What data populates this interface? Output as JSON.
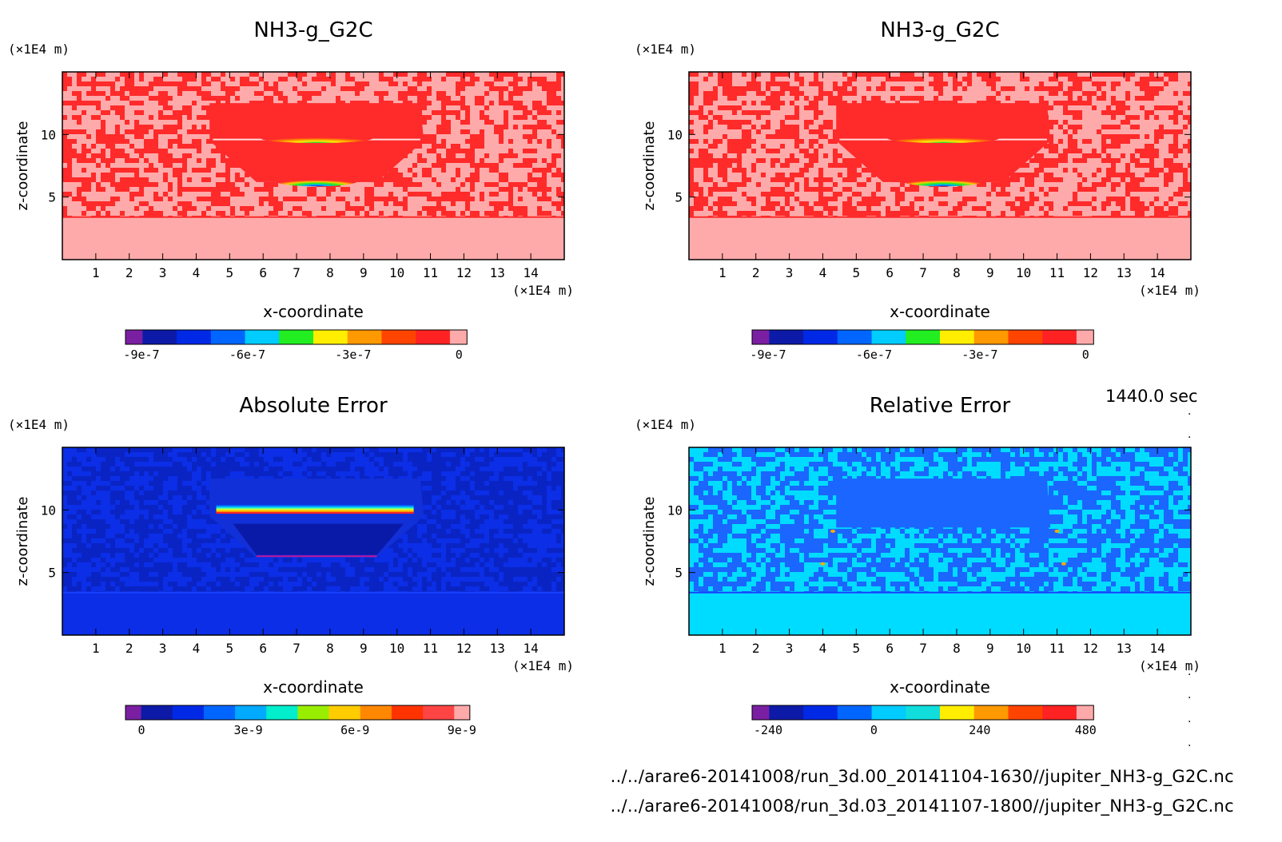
{
  "chart_data": [
    {
      "type": "heatmap",
      "title": "NH3-g_G2C",
      "xlabel": "x-coordinate",
      "ylabel": "z-coordinate",
      "x_unit": "(×1E4 m)",
      "z_unit": "(×1E4 m)",
      "xlim": [
        0,
        15
      ],
      "zlim": [
        0,
        15
      ],
      "x_ticks": [
        1,
        2,
        3,
        4,
        5,
        6,
        7,
        8,
        9,
        10,
        11,
        12,
        13,
        14
      ],
      "z_ticks": [
        5,
        10
      ],
      "colorbar_ticks": [
        "-9e-7",
        "-6e-7",
        "-3e-7",
        "0"
      ],
      "colorbar_levels": [
        "#7b1fa2",
        "#0d1aa8",
        "#0029e6",
        "#0066ff",
        "#00ccff",
        "#22ee22",
        "#ffee00",
        "#ff9900",
        "#ff4400",
        "#ff2222",
        "#ffaaaa"
      ],
      "background_colors": [
        "#ff2a2a",
        "#ffaaaa"
      ],
      "feature": "ring"
    },
    {
      "type": "heatmap",
      "title": "NH3-g_G2C",
      "xlabel": "x-coordinate",
      "ylabel": "z-coordinate",
      "x_unit": "(×1E4 m)",
      "z_unit": "(×1E4 m)",
      "xlim": [
        0,
        15
      ],
      "zlim": [
        0,
        15
      ],
      "x_ticks": [
        1,
        2,
        3,
        4,
        5,
        6,
        7,
        8,
        9,
        10,
        11,
        12,
        13,
        14
      ],
      "z_ticks": [
        5,
        10
      ],
      "colorbar_ticks": [
        "-9e-7",
        "-6e-7",
        "-3e-7",
        "0"
      ],
      "colorbar_levels": [
        "#7b1fa2",
        "#0d1aa8",
        "#0029e6",
        "#0066ff",
        "#00ccff",
        "#22ee22",
        "#ffee00",
        "#ff9900",
        "#ff4400",
        "#ff2222",
        "#ffaaaa"
      ],
      "background_colors": [
        "#ff2a2a",
        "#ffaaaa"
      ],
      "feature": "ring"
    },
    {
      "type": "heatmap",
      "title": "Absolute Error",
      "xlabel": "x-coordinate",
      "ylabel": "z-coordinate",
      "x_unit": "(×1E4 m)",
      "z_unit": "(×1E4 m)",
      "xlim": [
        0,
        15
      ],
      "zlim": [
        0,
        15
      ],
      "x_ticks": [
        1,
        2,
        3,
        4,
        5,
        6,
        7,
        8,
        9,
        10,
        11,
        12,
        13,
        14
      ],
      "z_ticks": [
        5,
        10
      ],
      "colorbar_ticks": [
        "0",
        "3e-9",
        "6e-9",
        "9e-9"
      ],
      "colorbar_levels": [
        "#7b1fa2",
        "#0d1aa8",
        "#0029e6",
        "#0066ff",
        "#00aaff",
        "#00eecc",
        "#99ee00",
        "#ffcc00",
        "#ff8800",
        "#ff3300",
        "#ff4444",
        "#ffaaaa"
      ],
      "background_colors": [
        "#0b2ee6",
        "#0a24c4"
      ],
      "feature": "abs"
    },
    {
      "type": "heatmap",
      "title": "Relative Error",
      "xlabel": "x-coordinate",
      "ylabel": "z-coordinate",
      "x_unit": "(×1E4 m)",
      "z_unit": "(×1E4 m)",
      "xlim": [
        0,
        15
      ],
      "zlim": [
        0,
        15
      ],
      "x_ticks": [
        1,
        2,
        3,
        4,
        5,
        6,
        7,
        8,
        9,
        10,
        11,
        12,
        13,
        14
      ],
      "z_ticks": [
        5,
        10
      ],
      "colorbar_ticks": [
        "-240",
        "0",
        "240",
        "480"
      ],
      "colorbar_levels": [
        "#7b1fa2",
        "#0d1aa8",
        "#0029e6",
        "#0066ff",
        "#00ccff",
        "#11dddd",
        "#ffee00",
        "#ff9900",
        "#ff4400",
        "#ff2222",
        "#ffaaaa"
      ],
      "background_colors": [
        "#00dcff",
        "#1a66ff"
      ],
      "feature": "rel"
    }
  ],
  "time_label": "1440.0 sec",
  "files": [
    "../../arare6-20141008/run_3d.00_20141104-1630//jupiter_NH3-g_G2C.nc",
    "../../arare6-20141008/run_3d.03_20141107-1800//jupiter_NH3-g_G2C.nc"
  ]
}
